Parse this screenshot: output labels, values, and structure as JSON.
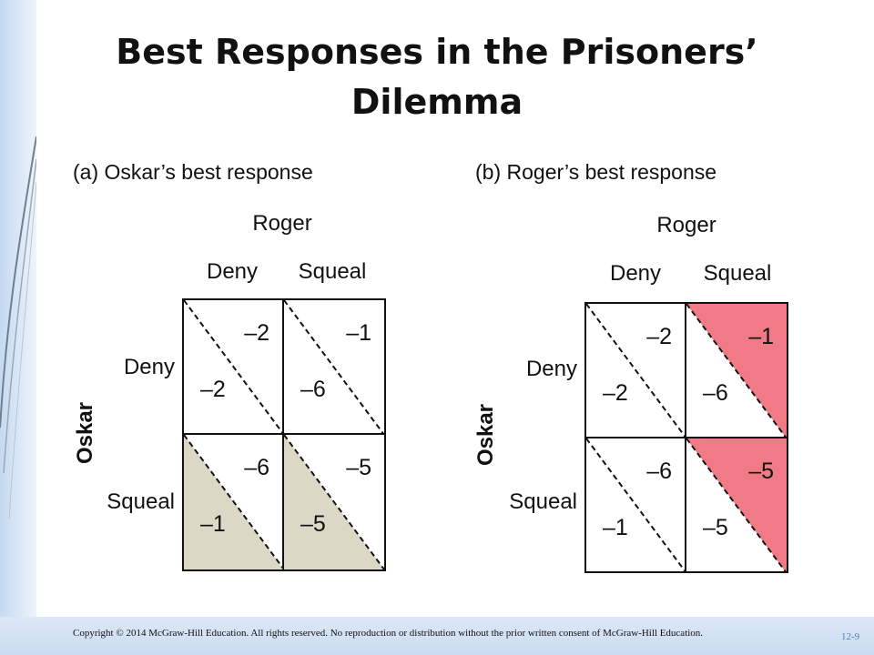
{
  "slide": {
    "title": "Best Responses in the Prisoners’ Dilemma",
    "copyright": "Copyright © 2014 McGraw-Hill Education. All rights reserved. No reproduction or distribution without the prior written consent of McGraw-Hill Education.",
    "slide_number": "12-9"
  },
  "colors": {
    "oskar_best_fill": "#dcd8c6",
    "roger_best_fill": "#f07b86"
  },
  "panels": [
    {
      "title": "(a) Oskar’s best response",
      "column_player": "Roger",
      "row_player": "Oskar",
      "column_strategies": [
        "Deny",
        "Squeal"
      ],
      "row_strategies": [
        "Deny",
        "Squeal"
      ],
      "cells": [
        [
          {
            "column_payoff": "–2",
            "row_payoff": "–2",
            "highlight": "none"
          },
          {
            "column_payoff": "–1",
            "row_payoff": "–6",
            "highlight": "none"
          }
        ],
        [
          {
            "column_payoff": "–6",
            "row_payoff": "–1",
            "highlight": "lower-left"
          },
          {
            "column_payoff": "–5",
            "row_payoff": "–5",
            "highlight": "lower-left"
          }
        ]
      ]
    },
    {
      "title": "(b) Roger’s best response",
      "column_player": "Roger",
      "row_player": "Oskar",
      "column_strategies": [
        "Deny",
        "Squeal"
      ],
      "row_strategies": [
        "Deny",
        "Squeal"
      ],
      "cells": [
        [
          {
            "column_payoff": "–2",
            "row_payoff": "–2",
            "highlight": "none"
          },
          {
            "column_payoff": "–1",
            "row_payoff": "–6",
            "highlight": "upper-right"
          }
        ],
        [
          {
            "column_payoff": "–6",
            "row_payoff": "–1",
            "highlight": "none"
          },
          {
            "column_payoff": "–5",
            "row_payoff": "–5",
            "highlight": "upper-right"
          }
        ]
      ]
    }
  ]
}
